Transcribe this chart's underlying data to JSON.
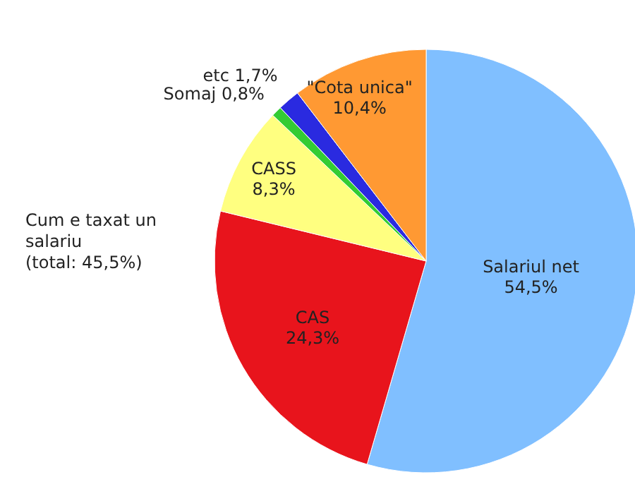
{
  "chart_data": {
    "type": "pie",
    "categories": [
      "Salariul net",
      "CAS",
      "CASS",
      "Somaj",
      "etc",
      "\"Cota unica\""
    ],
    "values": [
      54.5,
      24.3,
      8.3,
      0.8,
      1.7,
      10.4
    ],
    "value_labels": [
      "54,5%",
      "24,3%",
      "8,3%",
      "0,8%",
      "1,7%",
      "10,4%"
    ],
    "colors": [
      "#80bfff",
      "#e8141c",
      "#ffff80",
      "#33cc33",
      "#2a2ae0",
      "#ff9933"
    ],
    "annotations": [
      "Cum e taxat un salariu (total: 45,5%)"
    ]
  }
}
